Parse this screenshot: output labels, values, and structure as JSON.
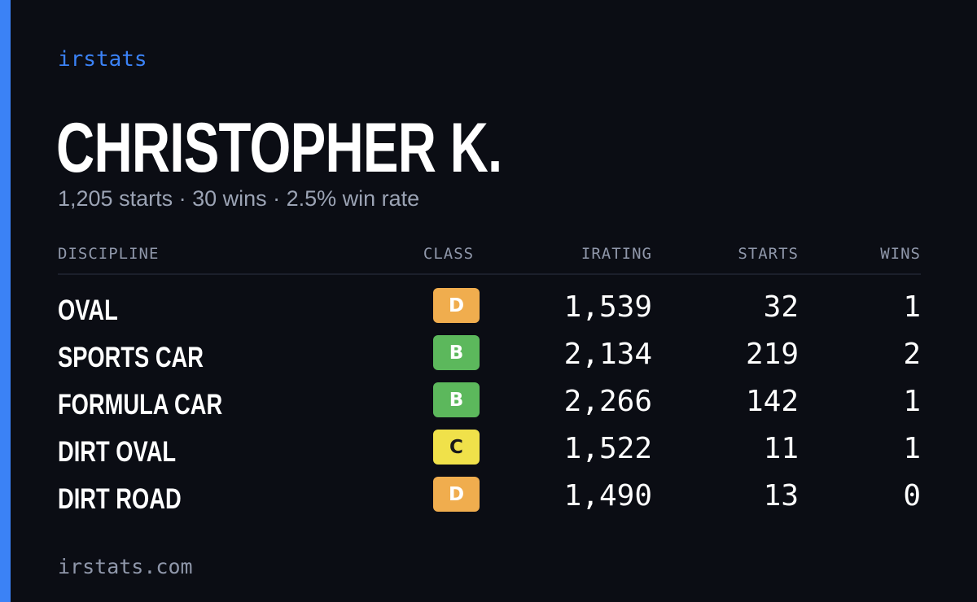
{
  "brand": "irstats",
  "player": {
    "name": "CHRISTOPHER K.",
    "summary": "1,205 starts · 30 wins · 2.5% win rate"
  },
  "colors": {
    "accent": "#3b82f6",
    "background": "#0b0d14",
    "class_D": "#f0ad4e",
    "class_B": "#5cb85c",
    "class_C": "#f0e14a"
  },
  "table": {
    "headers": {
      "discipline": "DISCIPLINE",
      "class": "CLASS",
      "irating": "IRATING",
      "starts": "STARTS",
      "wins": "WINS"
    },
    "rows": [
      {
        "discipline": "OVAL",
        "class": "D",
        "class_color": "#f0ad4e",
        "irating": "1,539",
        "starts": "32",
        "wins": "1"
      },
      {
        "discipline": "SPORTS CAR",
        "class": "B",
        "class_color": "#5cb85c",
        "irating": "2,134",
        "starts": "219",
        "wins": "2"
      },
      {
        "discipline": "FORMULA CAR",
        "class": "B",
        "class_color": "#5cb85c",
        "irating": "2,266",
        "starts": "142",
        "wins": "1"
      },
      {
        "discipline": "DIRT OVAL",
        "class": "C",
        "class_color": "#f0e14a",
        "irating": "1,522",
        "starts": "11",
        "wins": "1"
      },
      {
        "discipline": "DIRT ROAD",
        "class": "D",
        "class_color": "#f0ad4e",
        "irating": "1,490",
        "starts": "13",
        "wins": "0"
      }
    ]
  },
  "footer": "irstats.com"
}
